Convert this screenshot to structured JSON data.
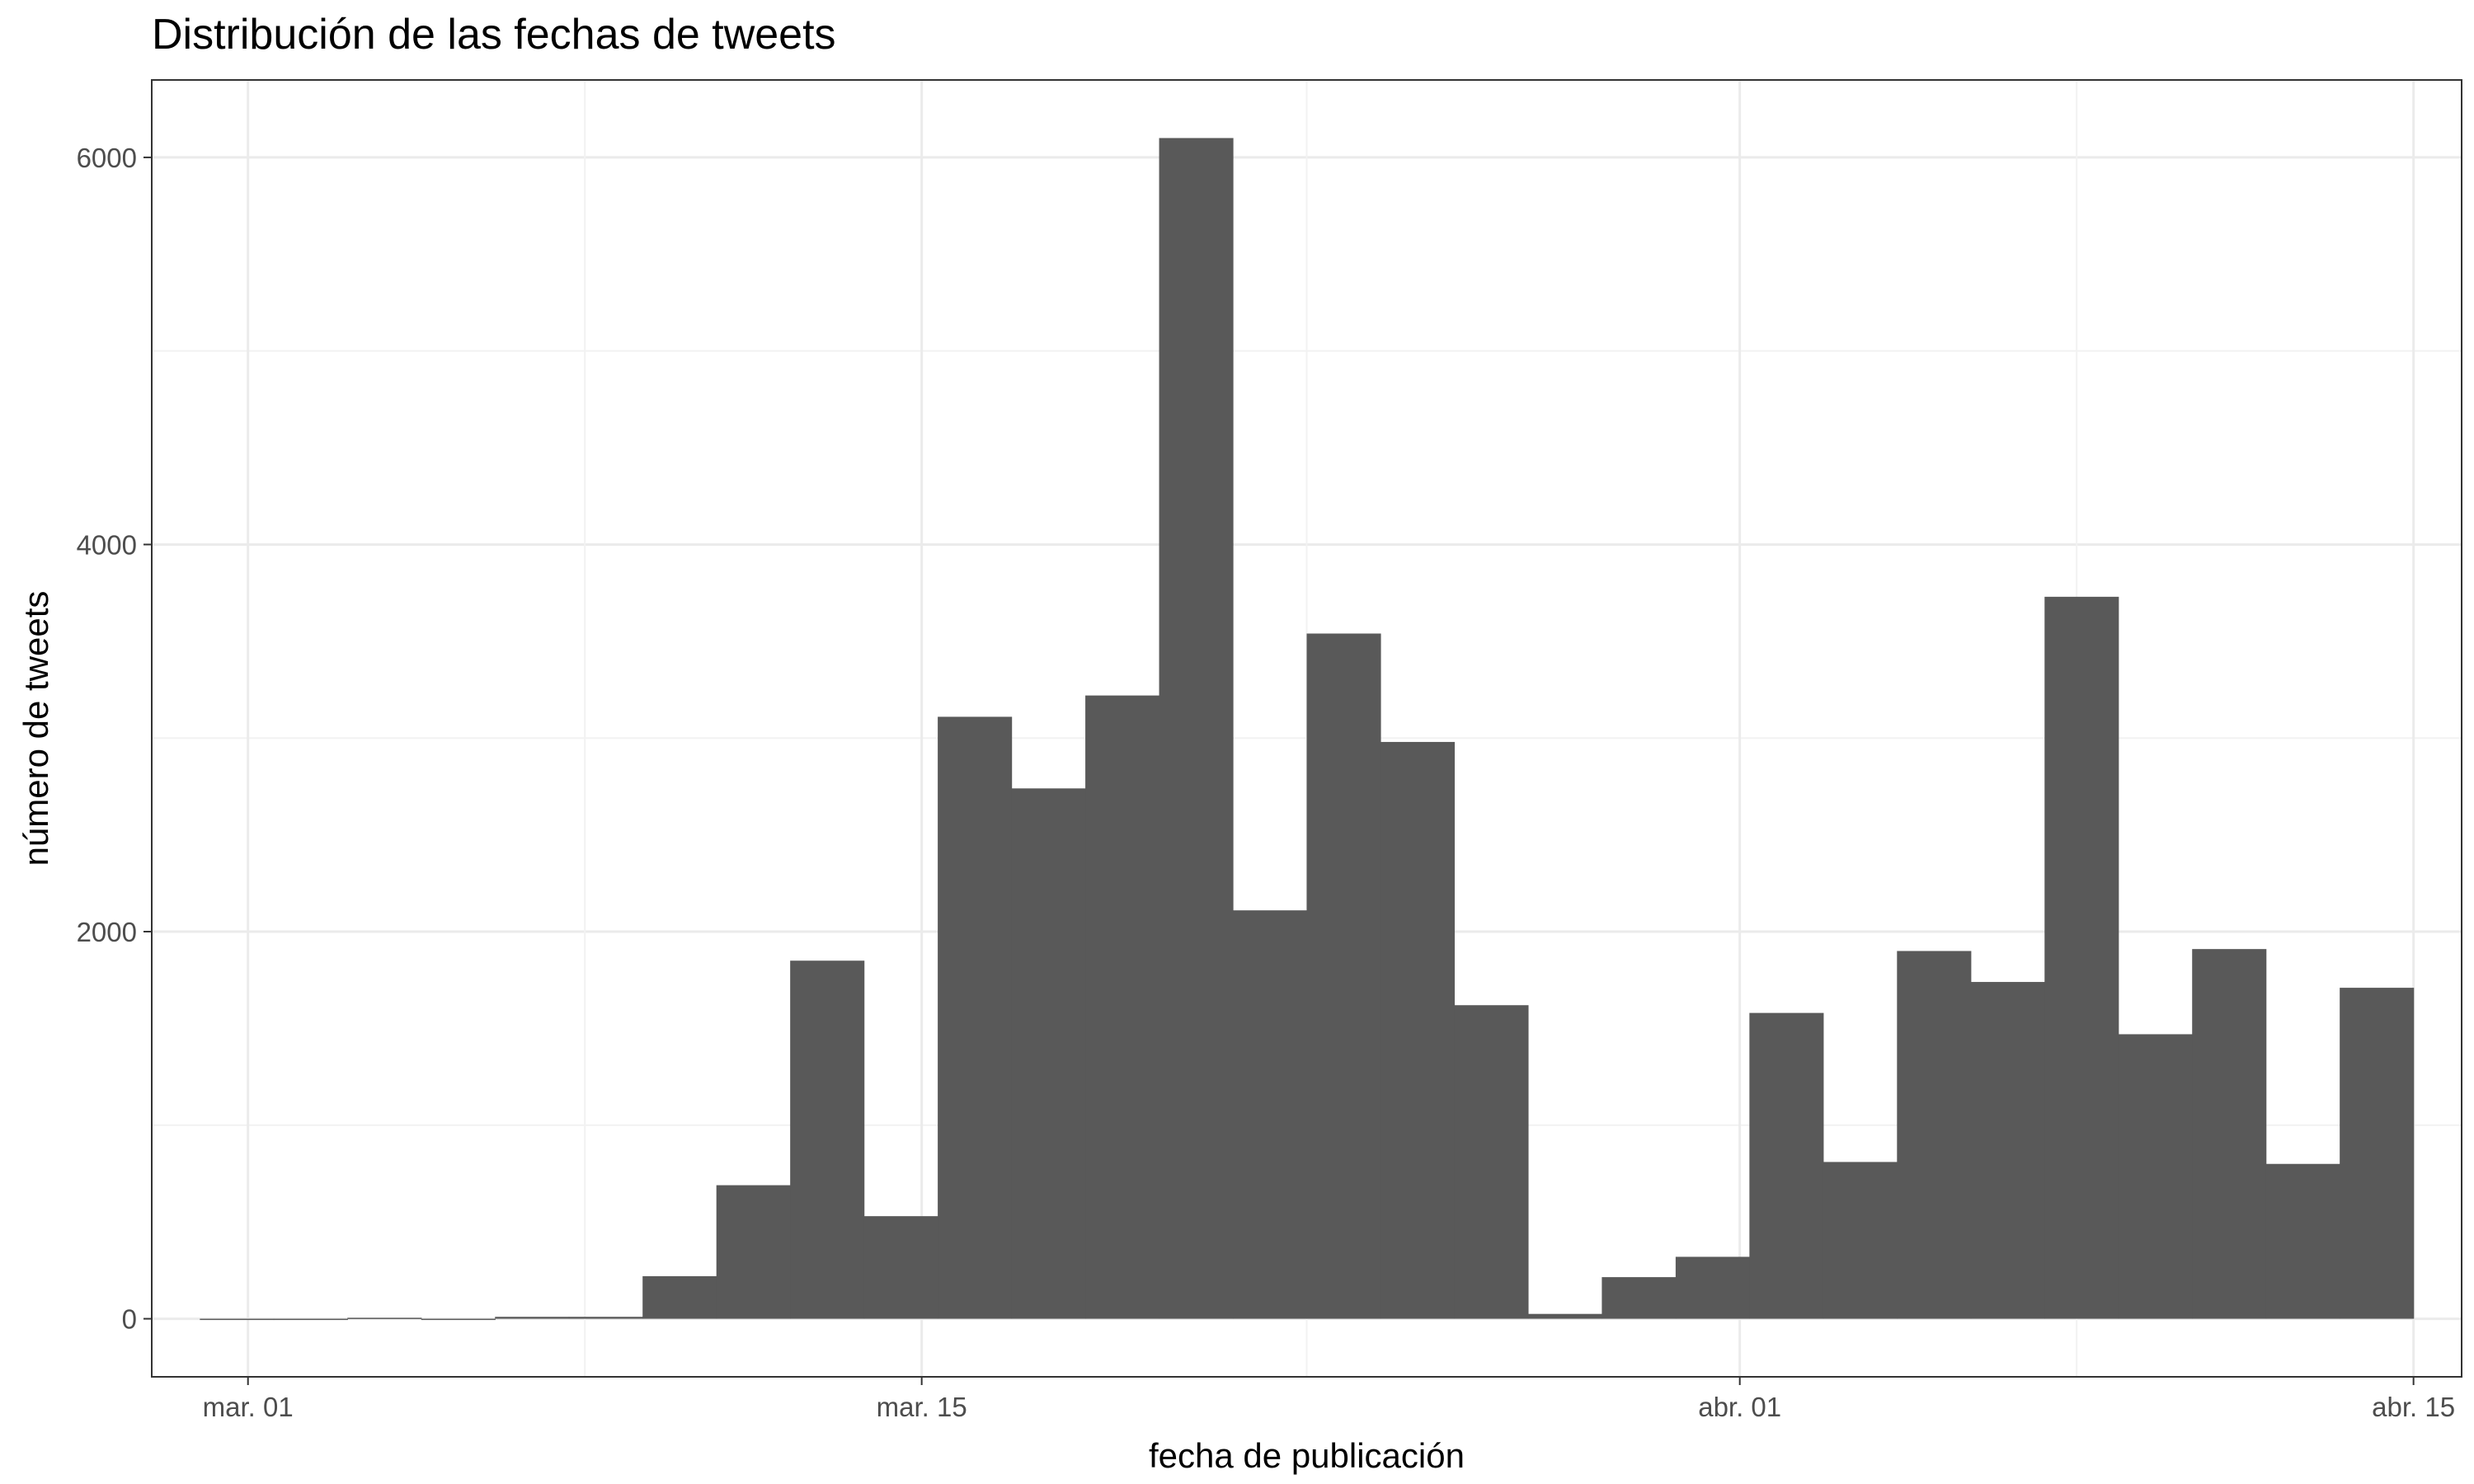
{
  "chart_data": {
    "type": "histogram",
    "title": "Distribución de las fechas de tweets",
    "xlabel": "fecha de publicación",
    "ylabel": "número de tweets",
    "x_axis": {
      "type": "date",
      "range": [
        "2020-02-28",
        "2020-04-16"
      ],
      "ticks": [
        {
          "date": "2020-03-01",
          "label": "mar. 01"
        },
        {
          "date": "2020-03-15",
          "label": "mar. 15"
        },
        {
          "date": "2020-04-01",
          "label": "abr. 01"
        },
        {
          "date": "2020-04-15",
          "label": "abr. 15"
        }
      ]
    },
    "y_axis": {
      "range": [
        -300,
        6400
      ],
      "ticks": [
        0,
        2000,
        4000,
        6000
      ]
    },
    "grid": true,
    "bar_color": "#595959",
    "bins": [
      {
        "start": "2020-02-29",
        "end": "2020-03-02",
        "value": 0
      },
      {
        "start": "2020-03-02",
        "end": "2020-03-04",
        "value": 0
      },
      {
        "start": "2020-03-04",
        "end": "2020-03-05",
        "value": 5
      },
      {
        "start": "2020-03-05",
        "end": "2020-03-07",
        "value": 0
      },
      {
        "start": "2020-03-07",
        "end": "2020-03-08",
        "value": 10
      },
      {
        "start": "2020-03-08",
        "end": "2020-03-10",
        "value": 10
      },
      {
        "start": "2020-03-10",
        "end": "2020-03-11",
        "value": 220
      },
      {
        "start": "2020-03-11",
        "end": "2020-03-13",
        "value": 690
      },
      {
        "start": "2020-03-13",
        "end": "2020-03-14",
        "value": 1850
      },
      {
        "start": "2020-03-14",
        "end": "2020-03-16",
        "value": 530
      },
      {
        "start": "2020-03-16",
        "end": "2020-03-17",
        "value": 3110
      },
      {
        "start": "2020-03-17",
        "end": "2020-03-19",
        "value": 2740
      },
      {
        "start": "2020-03-19",
        "end": "2020-03-20",
        "value": 3220
      },
      {
        "start": "2020-03-20",
        "end": "2020-03-22",
        "value": 6100
      },
      {
        "start": "2020-03-22",
        "end": "2020-03-23",
        "value": 2110
      },
      {
        "start": "2020-03-23",
        "end": "2020-03-25",
        "value": 3540
      },
      {
        "start": "2020-03-25",
        "end": "2020-03-26",
        "value": 2980
      },
      {
        "start": "2020-03-26",
        "end": "2020-03-28",
        "value": 1620
      },
      {
        "start": "2020-03-28",
        "end": "2020-03-29",
        "value": 25
      },
      {
        "start": "2020-03-29",
        "end": "2020-03-31",
        "value": 215
      },
      {
        "start": "2020-03-31",
        "end": "2020-04-01",
        "value": 320
      },
      {
        "start": "2020-04-01",
        "end": "2020-04-03",
        "value": 1580
      },
      {
        "start": "2020-04-03",
        "end": "2020-04-04",
        "value": 810
      },
      {
        "start": "2020-04-04",
        "end": "2020-04-06",
        "value": 1900
      },
      {
        "start": "2020-04-06",
        "end": "2020-04-07",
        "value": 1740
      },
      {
        "start": "2020-04-07",
        "end": "2020-04-09",
        "value": 3730
      },
      {
        "start": "2020-04-09",
        "end": "2020-04-10",
        "value": 1470
      },
      {
        "start": "2020-04-10",
        "end": "2020-04-12",
        "value": 1910
      },
      {
        "start": "2020-04-12",
        "end": "2020-04-13",
        "value": 800
      },
      {
        "start": "2020-04-13",
        "end": "2020-04-15",
        "value": 1710
      }
    ]
  }
}
